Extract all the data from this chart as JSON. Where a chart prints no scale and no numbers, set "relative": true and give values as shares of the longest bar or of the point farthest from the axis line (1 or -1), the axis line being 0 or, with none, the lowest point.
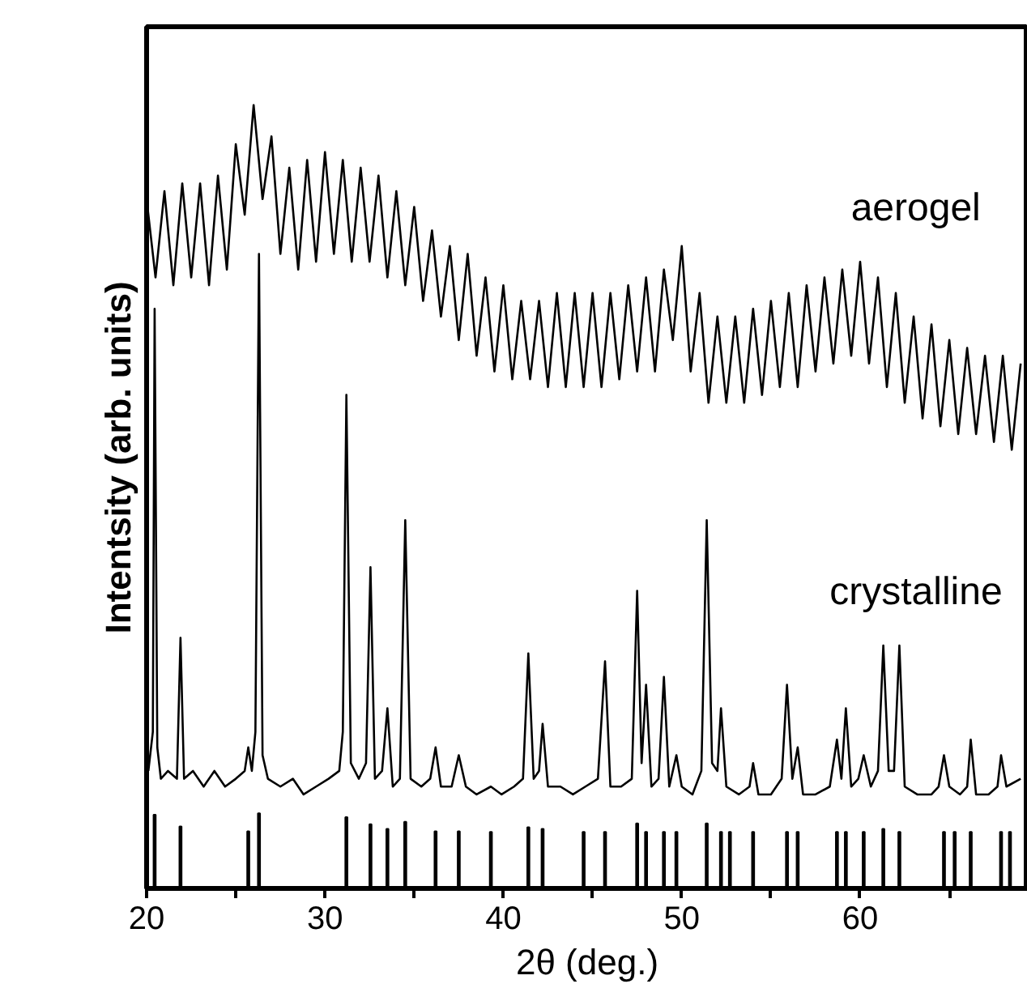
{
  "chart_data": {
    "type": "line",
    "relative": true,
    "xlabel": "2θ (deg.)",
    "ylabel": "Intentsity (arb. units)",
    "xlim": [
      20,
      69.4
    ],
    "xticks": [
      20,
      {
        "value": 25,
        "label": null
      },
      30,
      {
        "value": 35,
        "label": null
      },
      40,
      {
        "value": 45,
        "label": null
      },
      50,
      {
        "value": 55,
        "label": null
      },
      60,
      {
        "value": 65,
        "label": null
      }
    ],
    "tick_labels": "x",
    "grid": false,
    "series": [
      {
        "name": "aerogel",
        "color": "#000000",
        "x": [
          20,
          20.5,
          21,
          21.5,
          22,
          22.5,
          23,
          23.5,
          24,
          24.5,
          25,
          25.5,
          26,
          26.5,
          27,
          27.5,
          28,
          28.5,
          29,
          29.5,
          30,
          30.5,
          31,
          31.5,
          32,
          32.5,
          33,
          33.5,
          34,
          34.5,
          35,
          35.5,
          36,
          36.5,
          37,
          37.5,
          38,
          38.5,
          39,
          39.5,
          40,
          40.5,
          41,
          41.5,
          42,
          42.5,
          43,
          43.5,
          44,
          44.5,
          45,
          45.5,
          46,
          46.5,
          47,
          47.5,
          48,
          48.5,
          49,
          49.5,
          50,
          50.5,
          51,
          51.5,
          52,
          52.5,
          53,
          53.5,
          54,
          54.5,
          55,
          55.5,
          56,
          56.5,
          57,
          57.5,
          58,
          58.5,
          59,
          59.5,
          60,
          60.5,
          61,
          61.5,
          62,
          62.5,
          63,
          63.5,
          64,
          64.5,
          65,
          65.5,
          66,
          66.5,
          67,
          67.5,
          68,
          68.5,
          69
        ],
        "values": [
          0.88,
          0.78,
          0.89,
          0.77,
          0.9,
          0.78,
          0.9,
          0.77,
          0.91,
          0.79,
          0.95,
          0.86,
          1.0,
          0.88,
          0.96,
          0.81,
          0.92,
          0.79,
          0.93,
          0.8,
          0.94,
          0.81,
          0.93,
          0.8,
          0.92,
          0.8,
          0.91,
          0.78,
          0.89,
          0.77,
          0.87,
          0.75,
          0.84,
          0.73,
          0.82,
          0.7,
          0.81,
          0.68,
          0.78,
          0.66,
          0.77,
          0.65,
          0.75,
          0.65,
          0.75,
          0.64,
          0.76,
          0.64,
          0.76,
          0.64,
          0.76,
          0.64,
          0.76,
          0.65,
          0.77,
          0.66,
          0.78,
          0.66,
          0.79,
          0.7,
          0.82,
          0.66,
          0.76,
          0.62,
          0.73,
          0.62,
          0.73,
          0.62,
          0.74,
          0.63,
          0.75,
          0.64,
          0.76,
          0.64,
          0.77,
          0.66,
          0.78,
          0.67,
          0.79,
          0.68,
          0.8,
          0.67,
          0.78,
          0.64,
          0.76,
          0.62,
          0.73,
          0.6,
          0.72,
          0.59,
          0.7,
          0.58,
          0.69,
          0.58,
          0.68,
          0.57,
          0.68,
          0.56,
          0.67
        ]
      },
      {
        "name": "crystalline",
        "color": "#000000",
        "x": [
          20.1,
          20.35,
          20.45,
          20.6,
          20.8,
          21.2,
          21.7,
          21.9,
          22.1,
          22.6,
          23.2,
          23.8,
          24.4,
          25.0,
          25.5,
          25.7,
          25.9,
          26.1,
          26.3,
          26.5,
          26.8,
          27.5,
          28.2,
          28.8,
          29.5,
          30.2,
          30.8,
          31.0,
          31.2,
          31.45,
          31.9,
          32.3,
          32.55,
          32.8,
          33.2,
          33.5,
          33.8,
          34.2,
          34.5,
          34.8,
          35.4,
          35.9,
          36.2,
          36.5,
          37.1,
          37.5,
          37.9,
          38.5,
          39.3,
          39.9,
          40.6,
          41.1,
          41.4,
          41.7,
          42.0,
          42.2,
          42.5,
          43.2,
          43.9,
          44.6,
          45.3,
          45.7,
          46.0,
          46.6,
          47.2,
          47.5,
          47.75,
          48.0,
          48.3,
          48.7,
          49.0,
          49.3,
          49.7,
          50.0,
          50.6,
          51.1,
          51.4,
          51.7,
          52.0,
          52.2,
          52.5,
          53.2,
          53.8,
          54.0,
          54.3,
          55.0,
          55.6,
          55.9,
          56.2,
          56.5,
          56.8,
          57.5,
          58.3,
          58.7,
          58.95,
          59.2,
          59.5,
          59.9,
          60.2,
          60.6,
          61.0,
          61.3,
          61.6,
          61.9,
          62.2,
          62.5,
          63.2,
          64.0,
          64.4,
          64.7,
          65.0,
          65.6,
          66.0,
          66.2,
          66.5,
          67.2,
          67.7,
          67.9,
          68.2,
          69.0
        ],
        "values": [
          0.15,
          0.2,
          0.74,
          0.18,
          0.14,
          0.15,
          0.14,
          0.32,
          0.14,
          0.15,
          0.13,
          0.15,
          0.13,
          0.14,
          0.15,
          0.18,
          0.15,
          0.2,
          0.81,
          0.17,
          0.14,
          0.13,
          0.14,
          0.12,
          0.13,
          0.14,
          0.15,
          0.2,
          0.63,
          0.16,
          0.14,
          0.16,
          0.41,
          0.14,
          0.15,
          0.23,
          0.13,
          0.14,
          0.47,
          0.14,
          0.13,
          0.14,
          0.18,
          0.13,
          0.13,
          0.17,
          0.13,
          0.12,
          0.13,
          0.12,
          0.13,
          0.14,
          0.3,
          0.14,
          0.15,
          0.21,
          0.13,
          0.13,
          0.12,
          0.13,
          0.14,
          0.29,
          0.13,
          0.13,
          0.14,
          0.38,
          0.16,
          0.26,
          0.13,
          0.14,
          0.27,
          0.13,
          0.17,
          0.13,
          0.12,
          0.15,
          0.47,
          0.16,
          0.15,
          0.23,
          0.13,
          0.12,
          0.13,
          0.16,
          0.12,
          0.12,
          0.14,
          0.26,
          0.14,
          0.18,
          0.12,
          0.12,
          0.13,
          0.19,
          0.14,
          0.23,
          0.13,
          0.14,
          0.17,
          0.13,
          0.15,
          0.31,
          0.15,
          0.15,
          0.31,
          0.13,
          0.12,
          0.12,
          0.13,
          0.17,
          0.13,
          0.12,
          0.13,
          0.19,
          0.12,
          0.12,
          0.13,
          0.17,
          0.13,
          0.14
        ]
      },
      {
        "type": "bar",
        "color": "#000000",
        "x": [
          20.45,
          21.9,
          25.7,
          26.3,
          31.2,
          32.55,
          33.5,
          34.5,
          36.2,
          37.5,
          39.3,
          41.4,
          42.2,
          44.5,
          45.7,
          47.5,
          48.0,
          49.0,
          49.7,
          51.4,
          52.2,
          52.7,
          54.0,
          55.9,
          56.5,
          58.7,
          59.2,
          60.2,
          61.3,
          62.2,
          64.7,
          65.3,
          66.2,
          67.9,
          68.4
        ],
        "values": [
          0.094,
          0.079,
          0.073,
          0.096,
          0.091,
          0.082,
          0.076,
          0.085,
          0.073,
          0.073,
          0.072,
          0.078,
          0.076,
          0.072,
          0.072,
          0.083,
          0.072,
          0.072,
          0.072,
          0.083,
          0.072,
          0.072,
          0.072,
          0.072,
          0.072,
          0.072,
          0.072,
          0.072,
          0.076,
          0.072,
          0.072,
          0.072,
          0.072,
          0.072,
          0.072
        ]
      }
    ]
  }
}
